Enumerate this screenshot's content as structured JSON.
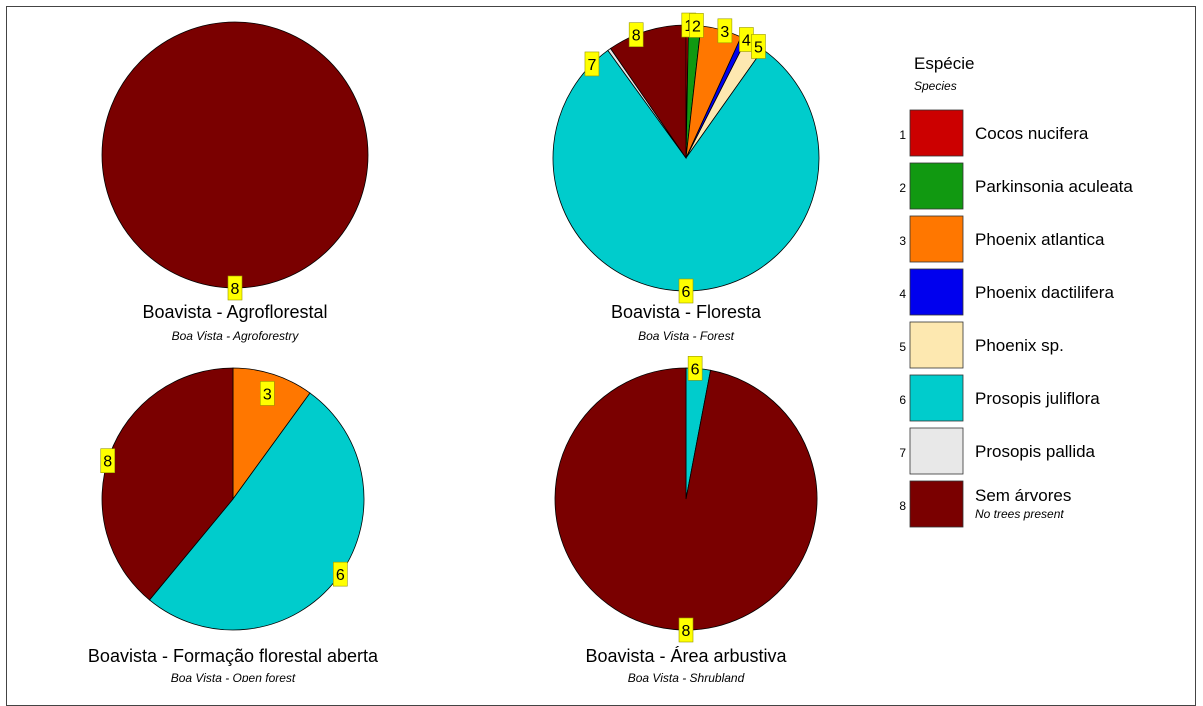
{
  "chart_data": [
    {
      "type": "pie",
      "title": "Boavista - Agroflorestal",
      "subtitle": "Boa Vista - Agroforestry",
      "slices": [
        {
          "category": "8",
          "value": 100
        }
      ]
    },
    {
      "type": "pie",
      "title": "Boavista - Floresta",
      "subtitle": "Boa Vista - Forest",
      "slices": [
        {
          "category": "1",
          "value": 0.3
        },
        {
          "category": "2",
          "value": 1.5
        },
        {
          "category": "3",
          "value": 5.0
        },
        {
          "category": "4",
          "value": 0.7
        },
        {
          "category": "5",
          "value": 2.3
        },
        {
          "category": "6",
          "value": 80.2
        },
        {
          "category": "7",
          "value": 0.4
        },
        {
          "category": "8",
          "value": 9.6
        }
      ]
    },
    {
      "type": "pie",
      "title": "Boavista - Formação florestal aberta",
      "subtitle": "Boa Vista - Open forest",
      "slices": [
        {
          "category": "3",
          "value": 10
        },
        {
          "category": "6",
          "value": 51
        },
        {
          "category": "8",
          "value": 39
        }
      ]
    },
    {
      "type": "pie",
      "title": "Boavista - Área arbustiva",
      "subtitle": "Boa Vista - Shrubland",
      "slices": [
        {
          "category": "6",
          "value": 3
        },
        {
          "category": "8",
          "value": 97
        }
      ]
    }
  ],
  "legend": {
    "title": "Espécie",
    "subtitle": "Species",
    "items": [
      {
        "num": "1",
        "name": "Cocos nucifera",
        "color": "#cc0000"
      },
      {
        "num": "2",
        "name": "Parkinsonia aculeata",
        "color": "#119911"
      },
      {
        "num": "3",
        "name": "Phoenix atlantica",
        "color": "#ff7700"
      },
      {
        "num": "4",
        "name": "Phoenix dactilifera",
        "color": "#0000ee"
      },
      {
        "num": "5",
        "name": "Phoenix sp.",
        "color": "#fde8b0"
      },
      {
        "num": "6",
        "name": "Prosopis juliflora",
        "color": "#00cccc"
      },
      {
        "num": "7",
        "name": "Prosopis pallida",
        "color": "#e8e8e8"
      },
      {
        "num": "8",
        "name": "Sem árvores",
        "note": "No trees present",
        "color": "#7a0000"
      }
    ]
  }
}
